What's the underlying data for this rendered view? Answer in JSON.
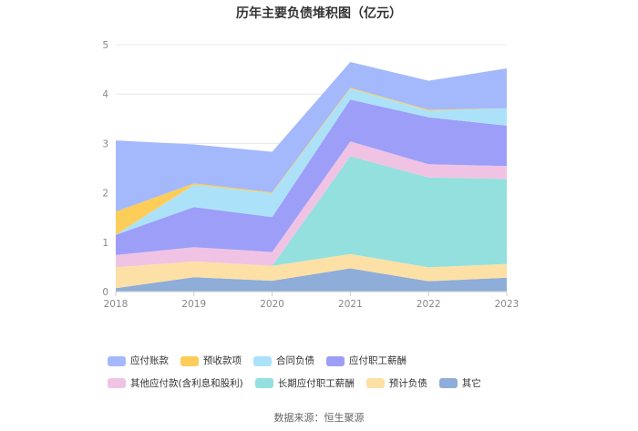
{
  "title": "历年主要负债堆积图（亿元）",
  "source": "数据来源：恒生聚源",
  "chart_data": {
    "type": "area",
    "stacked": true,
    "categories": [
      "2018",
      "2019",
      "2020",
      "2021",
      "2022",
      "2023"
    ],
    "ylim": [
      0,
      5
    ],
    "yticks": [
      "0",
      "1",
      "2",
      "3",
      "4",
      "5"
    ],
    "grid": true,
    "legend_position": "bottom",
    "series": [
      {
        "name": "其它",
        "color": "#8eadd8",
        "values": [
          0.07,
          0.29,
          0.22,
          0.47,
          0.21,
          0.28
        ]
      },
      {
        "name": "预计负债",
        "color": "#fde0a6",
        "values": [
          0.42,
          0.32,
          0.3,
          0.29,
          0.28,
          0.28
        ]
      },
      {
        "name": "长期应付职工薪酬",
        "color": "#93e0de",
        "values": [
          0.0,
          0.0,
          0.0,
          1.98,
          1.82,
          1.72
        ]
      },
      {
        "name": "其他应付款(含利息和股利)",
        "color": "#f0c3e4",
        "values": [
          0.25,
          0.29,
          0.28,
          0.3,
          0.27,
          0.26
        ]
      },
      {
        "name": "应付职工薪酬",
        "color": "#9d9ef8",
        "values": [
          0.41,
          0.81,
          0.71,
          0.85,
          0.95,
          0.82
        ]
      },
      {
        "name": "合同负债",
        "color": "#abe2fa",
        "values": [
          0.0,
          0.45,
          0.48,
          0.22,
          0.13,
          0.35
        ]
      },
      {
        "name": "预收款项",
        "color": "#fdcd5a",
        "values": [
          0.47,
          0.03,
          0.02,
          0.02,
          0.02,
          0.0
        ]
      },
      {
        "name": "应付账款",
        "color": "#a4b9fb",
        "values": [
          1.44,
          0.79,
          0.82,
          0.52,
          0.59,
          0.81
        ]
      }
    ],
    "legend_order": [
      "应付账款",
      "预收款项",
      "合同负债",
      "应付职工薪酬",
      "其他应付款(含利息和股利)",
      "长期应付职工薪酬",
      "预计负债",
      "其它"
    ]
  }
}
